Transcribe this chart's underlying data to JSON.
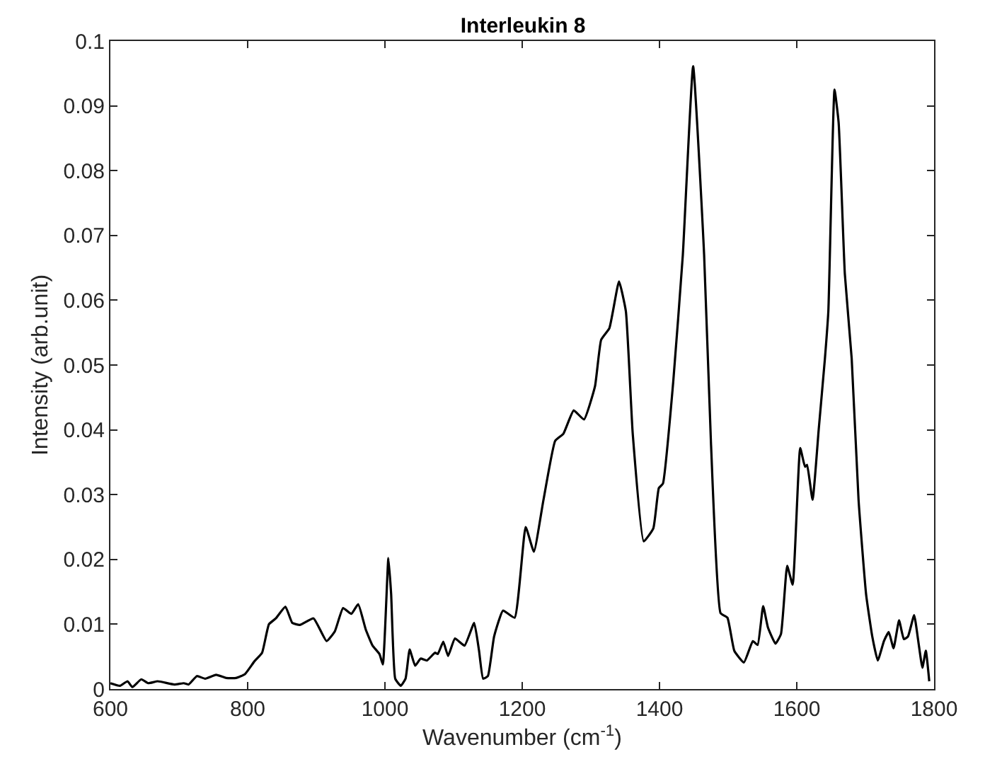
{
  "chart_data": {
    "type": "line",
    "title": "Interleukin 8",
    "xlabel": "Wavenumber (cm$^{-1}$)",
    "ylabel": "Intensity (arb.unit)",
    "xlim": [
      600,
      1800
    ],
    "xticks": [
      600,
      800,
      1000,
      1200,
      1400,
      1600,
      1800
    ],
    "ylim": [
      0,
      0.1
    ],
    "yticks": [
      0,
      0.01,
      0.02,
      0.03,
      0.04,
      0.05,
      0.06,
      0.07,
      0.08,
      0.09,
      0.1
    ],
    "marker": "none",
    "line_style": "solid",
    "series": [
      {
        "color": "#000000",
        "x": [
          600,
          614,
          625,
          632,
          645,
          655,
          669,
          693,
          707,
          714,
          726,
          738,
          754,
          769,
          783,
          796,
          810,
          821,
          831,
          841,
          855,
          865,
          876,
          896,
          915,
          927,
          939,
          951,
          961,
          972,
          982,
          992,
          997,
          1005,
          1009,
          1015,
          1023,
          1030,
          1036,
          1044,
          1052,
          1061,
          1073,
          1077,
          1085,
          1092,
          1102,
          1116,
          1130,
          1137,
          1143,
          1150,
          1159,
          1172,
          1189,
          1205,
          1217,
          1231,
          1248,
          1260,
          1275,
          1290,
          1306,
          1315,
          1327,
          1341,
          1351,
          1361,
          1377,
          1391,
          1399,
          1405,
          1420,
          1434,
          1449,
          1465,
          1475,
          1489,
          1499,
          1509,
          1523,
          1536,
          1543,
          1551,
          1558,
          1569,
          1577,
          1586,
          1594,
          1605,
          1612,
          1615,
          1623,
          1632,
          1641,
          1646,
          1655,
          1661,
          1670,
          1680,
          1690,
          1701,
          1710,
          1718,
          1727,
          1734,
          1741,
          1749,
          1756,
          1762,
          1771,
          1777,
          1783,
          1788,
          1793
        ],
        "values": [
          0.0009,
          0.0005,
          0.0012,
          0.0003,
          0.0015,
          0.0009,
          0.0012,
          0.0007,
          0.0009,
          0.0007,
          0.002,
          0.0016,
          0.0022,
          0.0017,
          0.0017,
          0.0023,
          0.0043,
          0.0056,
          0.01,
          0.0109,
          0.0127,
          0.0102,
          0.0099,
          0.0109,
          0.0074,
          0.0089,
          0.0125,
          0.0116,
          0.0131,
          0.0092,
          0.0067,
          0.0054,
          0.0038,
          0.0202,
          0.0147,
          0.0016,
          0.0005,
          0.0016,
          0.0061,
          0.0036,
          0.0047,
          0.0044,
          0.0056,
          0.0054,
          0.0073,
          0.0051,
          0.0078,
          0.0067,
          0.0102,
          0.006,
          0.0016,
          0.002,
          0.0081,
          0.0121,
          0.011,
          0.025,
          0.0212,
          0.0292,
          0.0383,
          0.0394,
          0.043,
          0.0416,
          0.0467,
          0.0539,
          0.0557,
          0.0629,
          0.0583,
          0.0394,
          0.0228,
          0.0248,
          0.031,
          0.0317,
          0.0474,
          0.067,
          0.0961,
          0.067,
          0.0379,
          0.0117,
          0.011,
          0.0059,
          0.0041,
          0.0074,
          0.0068,
          0.0128,
          0.0095,
          0.007,
          0.0085,
          0.019,
          0.0161,
          0.0372,
          0.0343,
          0.0346,
          0.0292,
          0.0401,
          0.051,
          0.0583,
          0.0925,
          0.0874,
          0.0641,
          0.051,
          0.0292,
          0.0146,
          0.0081,
          0.0044,
          0.0074,
          0.0088,
          0.0063,
          0.0106,
          0.0077,
          0.0081,
          0.0114,
          0.0074,
          0.0033,
          0.0059,
          0.0012
        ]
      }
    ]
  }
}
